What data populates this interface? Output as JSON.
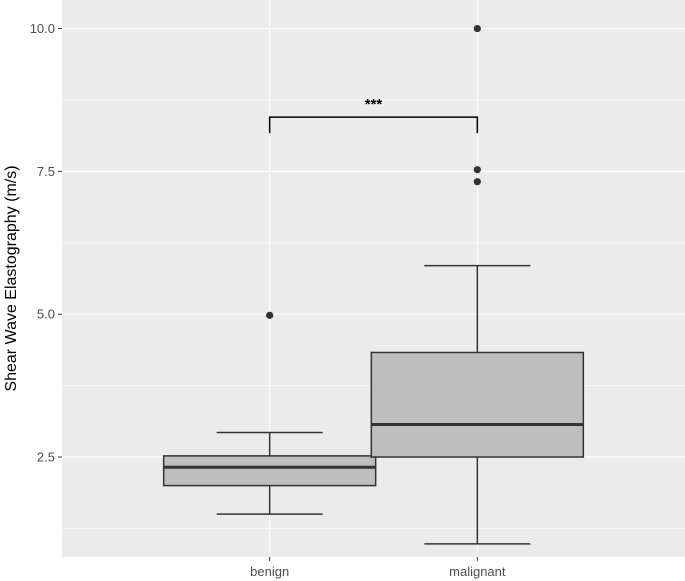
{
  "chart_data": {
    "type": "boxplot",
    "title": "",
    "xlabel": "",
    "ylabel": "Shear Wave Elastography (m/s)",
    "ylim": [
      0.75,
      10.5
    ],
    "y_ticks": [
      2.5,
      5.0,
      7.5,
      10.0
    ],
    "y_tick_labels": [
      "2.5",
      "5.0",
      "7.5",
      "10.0"
    ],
    "grid": true,
    "categories": [
      "benign",
      "malignant"
    ],
    "boxes": [
      {
        "category": "benign",
        "whisker_low": 1.5,
        "q1": 2.0,
        "median": 2.32,
        "q3": 2.52,
        "whisker_high": 2.93,
        "outliers": [
          4.98
        ]
      },
      {
        "category": "malignant",
        "whisker_low": 0.98,
        "q1": 2.5,
        "median": 3.07,
        "q3": 4.33,
        "whisker_high": 5.85,
        "outliers": [
          7.32,
          7.53,
          10.0
        ]
      }
    ],
    "significance": {
      "groups": [
        "benign",
        "malignant"
      ],
      "label": "***",
      "y": 8.45
    },
    "colors": {
      "panel": "#ebebeb",
      "grid": "#ffffff",
      "box_fill": "#bebebe",
      "box_line": "#333333"
    }
  }
}
